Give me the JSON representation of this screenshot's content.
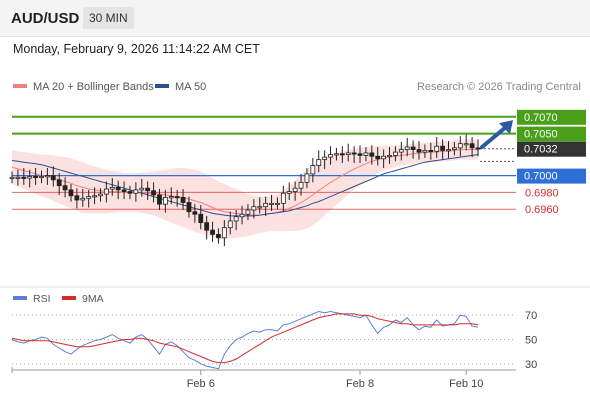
{
  "header": {
    "symbol": "AUD/USD",
    "interval": "30 MIN"
  },
  "datetime": "Monday, February 9, 2026 11:14:22 AM CET",
  "copyright": "Research © 2026 Trading Central",
  "chart_data": [
    {
      "type": "candlestick",
      "legend": [
        {
          "name": "MA 20 + Bollinger Bands",
          "color": "#f08080"
        },
        {
          "name": "MA 50",
          "color": "#2a4f8f"
        }
      ],
      "ylim": [
        0.689,
        0.709
      ],
      "x_ticks": [
        {
          "label": "Feb 6",
          "index": 32
        },
        {
          "label": "Feb 8",
          "index": 59
        },
        {
          "label": "Feb 10",
          "index": 77
        }
      ],
      "n_bars": 80,
      "closes": [
        0.6998,
        0.6998,
        0.6997,
        0.6999,
        0.6998,
        0.6999,
        0.7,
        0.6995,
        0.6988,
        0.6983,
        0.6976,
        0.6971,
        0.6973,
        0.6975,
        0.6976,
        0.6978,
        0.6984,
        0.6986,
        0.6983,
        0.6981,
        0.6979,
        0.6983,
        0.6985,
        0.6982,
        0.6977,
        0.6966,
        0.6974,
        0.6975,
        0.6974,
        0.6968,
        0.6957,
        0.6954,
        0.6944,
        0.6935,
        0.693,
        0.6926,
        0.6938,
        0.6946,
        0.6951,
        0.6954,
        0.6959,
        0.6963,
        0.6963,
        0.6967,
        0.6967,
        0.6967,
        0.6979,
        0.6981,
        0.6985,
        0.6992,
        0.7002,
        0.7012,
        0.7019,
        0.7022,
        0.7025,
        0.7026,
        0.7025,
        0.7027,
        0.7026,
        0.7024,
        0.7027,
        0.7023,
        0.702,
        0.7023,
        0.7024,
        0.7028,
        0.7031,
        0.7034,
        0.7031,
        0.7028,
        0.703,
        0.7029,
        0.7035,
        0.703,
        0.7031,
        0.7033,
        0.7038,
        0.7038,
        0.7033,
        0.7032
      ],
      "ma20": [
        0.701,
        0.7008,
        0.7006,
        0.7004,
        0.7002,
        0.7,
        0.6999,
        0.6997,
        0.6995,
        0.6993,
        0.6991,
        0.6988,
        0.6986,
        0.6984,
        0.6983,
        0.6982,
        0.6981,
        0.6981,
        0.6981,
        0.698,
        0.698,
        0.698,
        0.698,
        0.6979,
        0.6979,
        0.6978,
        0.6977,
        0.6976,
        0.6975,
        0.6974,
        0.6972,
        0.697,
        0.6968,
        0.6965,
        0.6962,
        0.6959,
        0.6957,
        0.6956,
        0.6955,
        0.6954,
        0.6953,
        0.6953,
        0.6953,
        0.6954,
        0.6955,
        0.6956,
        0.6958,
        0.6961,
        0.6964,
        0.6968,
        0.6972,
        0.6977,
        0.6982,
        0.6987,
        0.6992,
        0.6996,
        0.7,
        0.7004,
        0.7008,
        0.7011,
        0.7014,
        0.7017,
        0.7019,
        0.7021,
        0.7022,
        0.7023,
        0.7024,
        0.7025,
        0.7026,
        0.7027,
        0.7027,
        0.7028,
        0.7028,
        0.7029,
        0.7029,
        0.703,
        0.7031,
        0.7031,
        0.7031,
        0.7031
      ],
      "ma50": [
        0.7018,
        0.7017,
        0.7016,
        0.7015,
        0.7014,
        0.7013,
        0.7011,
        0.7009,
        0.7007,
        0.7005,
        0.7003,
        0.7001,
        0.6999,
        0.6997,
        0.6995,
        0.6993,
        0.6991,
        0.6989,
        0.6987,
        0.6985,
        0.6983,
        0.6981,
        0.6979,
        0.6977,
        0.6975,
        0.6973,
        0.6971,
        0.6969,
        0.6967,
        0.6965,
        0.6963,
        0.6961,
        0.6959,
        0.6957,
        0.6955,
        0.6954,
        0.6953,
        0.6952,
        0.6952,
        0.6952,
        0.6952,
        0.6952,
        0.6953,
        0.6954,
        0.6955,
        0.6956,
        0.6957,
        0.6958,
        0.696,
        0.6962,
        0.6964,
        0.6967,
        0.6969,
        0.6972,
        0.6975,
        0.6978,
        0.6981,
        0.6984,
        0.6987,
        0.699,
        0.6993,
        0.6996,
        0.6999,
        0.7002,
        0.7004,
        0.7006,
        0.7008,
        0.701,
        0.7012,
        0.7014,
        0.7016,
        0.7017,
        0.7018,
        0.7019,
        0.702,
        0.7021,
        0.7022,
        0.7023,
        0.7024,
        0.7025
      ],
      "bollinger_width": [
        0.002,
        0.0021,
        0.0022,
        0.0023,
        0.0024,
        0.0025,
        0.0026,
        0.0027,
        0.0028,
        0.0029,
        0.003,
        0.003,
        0.003,
        0.0029,
        0.0028,
        0.0027,
        0.0026,
        0.0025,
        0.0024,
        0.0023,
        0.0023,
        0.0023,
        0.0024,
        0.0025,
        0.0026,
        0.0028,
        0.003,
        0.0032,
        0.0034,
        0.0035,
        0.0036,
        0.0037,
        0.0037,
        0.0036,
        0.0035,
        0.0034,
        0.0033,
        0.0031,
        0.0029,
        0.0027,
        0.0025,
        0.0023,
        0.0022,
        0.0021,
        0.0021,
        0.0022,
        0.0024,
        0.0027,
        0.003,
        0.0033,
        0.0035,
        0.0036,
        0.0036,
        0.0035,
        0.0033,
        0.0031,
        0.0029,
        0.0026,
        0.0024,
        0.0022,
        0.002,
        0.0018,
        0.0016,
        0.0015,
        0.0014,
        0.0013,
        0.0012,
        0.0012,
        0.0012,
        0.0012,
        0.0012,
        0.0012,
        0.0012,
        0.0012,
        0.0012,
        0.0012,
        0.0012,
        0.0012,
        0.0012,
        0.0012
      ],
      "levels": [
        {
          "label": "0.7070",
          "value": 0.707,
          "color": "#4aa019",
          "style": "resistance"
        },
        {
          "label": "0.7050",
          "value": 0.705,
          "color": "#4aa019",
          "style": "resistance"
        },
        {
          "label": "0.7032",
          "value": 0.7032,
          "color": "#333333",
          "style": "last"
        },
        {
          "label": "0.7000",
          "value": 0.7,
          "color": "#2e6fd6",
          "style": "pivot"
        },
        {
          "label": "0.6980",
          "value": 0.698,
          "color": "#d92a2a",
          "style": "support"
        },
        {
          "label": "0.6960",
          "value": 0.696,
          "color": "#d92a2a",
          "style": "support"
        }
      ]
    },
    {
      "type": "line",
      "legend": [
        {
          "name": "RSI",
          "color": "#5b7fd8"
        },
        {
          "name": "9MA",
          "color": "#d92a2a"
        }
      ],
      "ylim": [
        20,
        80
      ],
      "y_ticks": [
        "70",
        "50",
        "30"
      ],
      "rsi": [
        50,
        48,
        47,
        49,
        50,
        52,
        51,
        46,
        43,
        40,
        38,
        42,
        45,
        47,
        49,
        50,
        52,
        54,
        51,
        49,
        47,
        52,
        54,
        50,
        44,
        38,
        46,
        48,
        45,
        40,
        35,
        33,
        30,
        28,
        27,
        26,
        38,
        45,
        50,
        52,
        55,
        57,
        56,
        58,
        58,
        57,
        62,
        63,
        65,
        67,
        69,
        71,
        73,
        72,
        73,
        72,
        71,
        70,
        69,
        68,
        70,
        62,
        55,
        60,
        62,
        66,
        64,
        68,
        62,
        58,
        61,
        60,
        66,
        61,
        62,
        63,
        70,
        69,
        61,
        60
      ],
      "ma9": [
        51,
        50,
        49,
        49,
        49,
        49,
        49,
        48,
        47,
        46,
        45,
        44,
        44,
        44,
        45,
        46,
        47,
        48,
        49,
        50,
        50,
        51,
        51,
        50,
        49,
        47,
        46,
        45,
        44,
        42,
        40,
        38,
        36,
        34,
        32,
        31,
        31,
        32,
        34,
        37,
        40,
        43,
        46,
        49,
        52,
        54,
        56,
        58,
        60,
        62,
        64,
        66,
        68,
        69,
        70,
        71,
        71,
        71,
        71,
        70,
        70,
        69,
        67,
        66,
        65,
        64,
        63,
        63,
        62,
        62,
        62,
        62,
        62,
        62,
        62,
        62,
        63,
        63,
        63,
        62
      ]
    }
  ]
}
